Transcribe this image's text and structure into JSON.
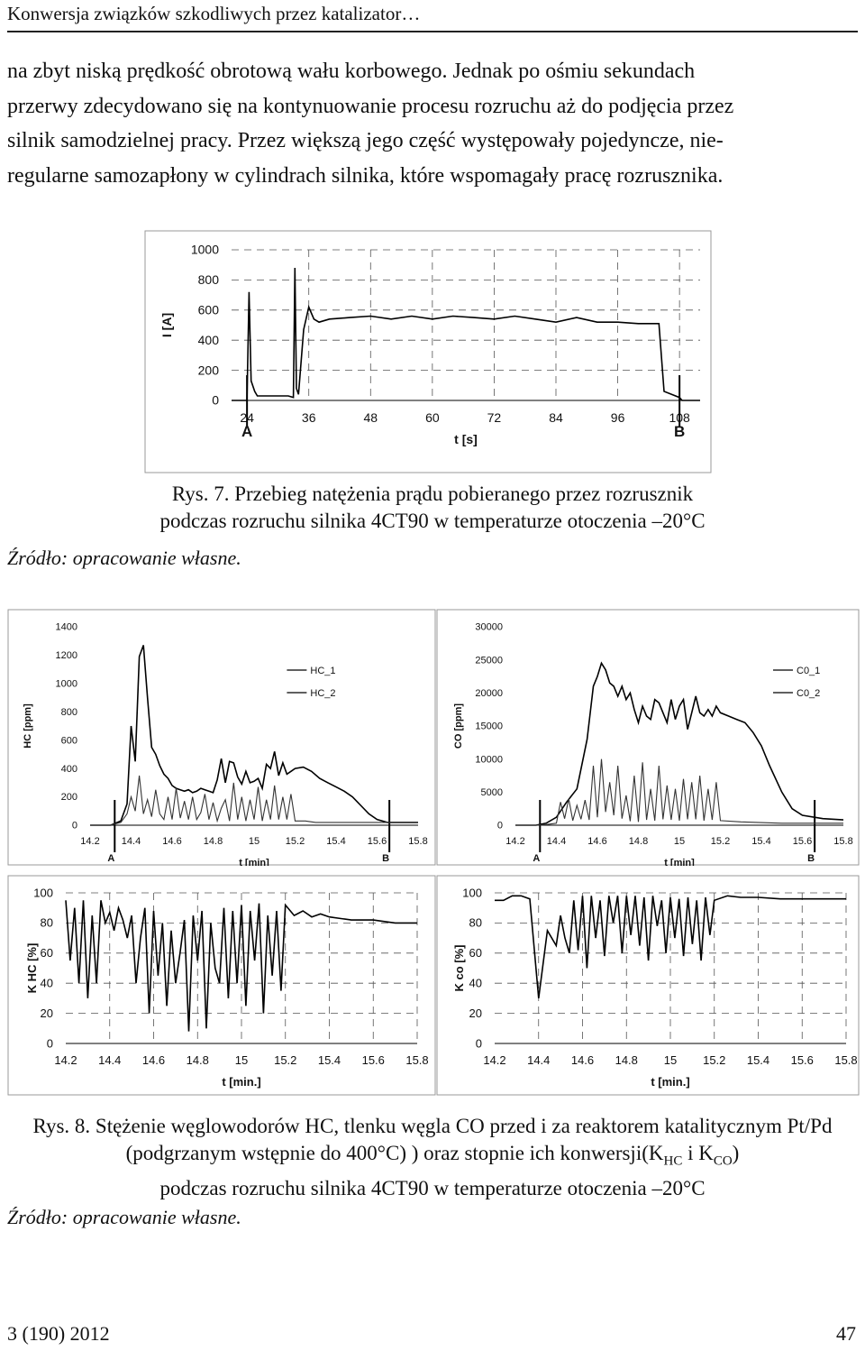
{
  "header": {
    "running_title": "Konwersja związków szkodliwych przez katalizator…"
  },
  "paragraph": {
    "lines": [
      "na zbyt niską prędkość obrotową wału korbowego. Jednak po ośmiu sekundach",
      "przerwy zdecydowano się na kontynuowanie procesu rozruchu aż do podjęcia przez",
      "silnik samodzielnej pracy. Przez większą jego część występowały pojedyncze, nie-",
      "regularne samozapłony w cylindrach silnika, które wspomagały pracę rozrusznika."
    ]
  },
  "figure7": {
    "caption_line1": "Rys. 7. Przebieg natężenia prądu pobieranego przez rozrusznik",
    "caption_line2": "podczas rozruchu silnika 4CT90 w temperaturze otoczenia –20°C",
    "source": "Źródło: opracowanie własne."
  },
  "figure8": {
    "caption_line1": "Rys. 8. Stężenie węglowodorów HC, tlenku węgla CO przed i za reaktorem katalitycznym Pt/Pd",
    "caption_line2_a": "(podgrzanym wstępnie do 400°C) ) oraz stopnie ich konwersji(K",
    "caption_line2_sub1": "HC",
    "caption_line2_b": " i K",
    "caption_line2_sub2": "CO",
    "caption_line2_c": ")",
    "caption_line3": "podczas rozruchu silnika 4CT90 w temperaturze otoczenia –20°C",
    "source": "Źródło: opracowanie własne."
  },
  "footer": {
    "issue": "3 (190) 2012",
    "page": "47"
  },
  "chart_data": [
    {
      "id": "current",
      "type": "line",
      "xlabel": "t [s]",
      "ylabel": "I [A]",
      "xlim": [
        21,
        112
      ],
      "ylim": [
        0,
        1000
      ],
      "xticks": [
        "24",
        "36",
        "48",
        "60",
        "72",
        "84",
        "96",
        "108"
      ],
      "yticks": [
        "0",
        "200",
        "400",
        "600",
        "800",
        "1000"
      ],
      "markers": [
        {
          "label": "A",
          "x": 24
        },
        {
          "label": "B",
          "x": 108
        }
      ],
      "grid": true,
      "series": [
        {
          "x": [
            21,
            24,
            24.4,
            24.8,
            25.5,
            26,
            32,
            33,
            33.3,
            33.6,
            34,
            35,
            36,
            37,
            38,
            40,
            44,
            48,
            52,
            56,
            60,
            64,
            68,
            72,
            76,
            80,
            84,
            88,
            92,
            96,
            100,
            104,
            105,
            108,
            108.5,
            112
          ],
          "y": [
            0,
            0,
            720,
            130,
            60,
            30,
            30,
            20,
            880,
            80,
            40,
            470,
            620,
            540,
            520,
            540,
            550,
            560,
            540,
            560,
            540,
            560,
            550,
            540,
            560,
            540,
            520,
            550,
            520,
            520,
            510,
            510,
            60,
            20,
            0,
            0
          ]
        }
      ]
    },
    {
      "id": "hc",
      "type": "line",
      "xlabel": "t [min]",
      "ylabel": "HC [ppm]",
      "xlim": [
        14.2,
        15.8
      ],
      "ylim": [
        0,
        1400
      ],
      "xticks": [
        "14.2",
        "14.4",
        "14.6",
        "14.8",
        "15",
        "15.2",
        "15.4",
        "15.6",
        "15.8"
      ],
      "yticks": [
        "0",
        "200",
        "400",
        "600",
        "800",
        "1000",
        "1200",
        "1400"
      ],
      "markers": [
        {
          "label": "A",
          "x": 14.32
        },
        {
          "label": "B",
          "x": 15.66
        }
      ],
      "grid": false,
      "legend": {
        "position": "top-center",
        "entries": [
          "HC_1",
          "HC_2"
        ]
      },
      "series": [
        {
          "name": "HC_1",
          "x": [
            14.2,
            14.3,
            14.35,
            14.38,
            14.4,
            14.42,
            14.44,
            14.46,
            14.48,
            14.5,
            14.52,
            14.54,
            14.56,
            14.58,
            14.6,
            14.62,
            14.64,
            14.66,
            14.68,
            14.7,
            14.72,
            14.74,
            14.76,
            14.78,
            14.8,
            14.82,
            14.84,
            14.86,
            14.88,
            14.9,
            14.92,
            14.94,
            14.96,
            14.98,
            15.0,
            15.02,
            15.04,
            15.06,
            15.08,
            15.1,
            15.12,
            15.14,
            15.16,
            15.18,
            15.2,
            15.24,
            15.28,
            15.32,
            15.36,
            15.4,
            15.44,
            15.48,
            15.52,
            15.56,
            15.6,
            15.65,
            15.7,
            15.8
          ],
          "y": [
            0,
            0,
            30,
            150,
            700,
            450,
            1190,
            1270,
            900,
            550,
            500,
            420,
            360,
            330,
            280,
            260,
            250,
            240,
            250,
            230,
            240,
            260,
            250,
            240,
            230,
            320,
            470,
            300,
            450,
            440,
            340,
            290,
            380,
            300,
            310,
            330,
            260,
            430,
            400,
            520,
            350,
            440,
            360,
            380,
            400,
            410,
            380,
            330,
            300,
            270,
            240,
            200,
            140,
            80,
            40,
            20,
            20,
            20
          ]
        },
        {
          "name": "HC_2",
          "x": [
            14.2,
            14.3,
            14.35,
            14.38,
            14.4,
            14.42,
            14.44,
            14.46,
            14.48,
            14.5,
            14.52,
            14.54,
            14.56,
            14.58,
            14.6,
            14.62,
            14.64,
            14.66,
            14.68,
            14.7,
            14.72,
            14.74,
            14.76,
            14.78,
            14.8,
            14.82,
            14.84,
            14.86,
            14.88,
            14.9,
            14.92,
            14.94,
            14.96,
            14.98,
            15.0,
            15.02,
            15.04,
            15.06,
            15.08,
            15.1,
            15.12,
            15.14,
            15.16,
            15.18,
            15.2,
            15.25,
            15.3,
            15.4,
            15.5,
            15.6,
            15.7,
            15.8
          ],
          "y": [
            0,
            0,
            20,
            80,
            200,
            100,
            350,
            80,
            180,
            60,
            250,
            80,
            40,
            200,
            40,
            260,
            50,
            170,
            40,
            200,
            40,
            90,
            220,
            40,
            160,
            30,
            120,
            180,
            30,
            300,
            40,
            200,
            30,
            180,
            40,
            270,
            30,
            180,
            40,
            280,
            40,
            200,
            40,
            220,
            30,
            30,
            20,
            20,
            20,
            20,
            20,
            20
          ]
        }
      ]
    },
    {
      "id": "co",
      "type": "line",
      "xlabel": "t [min]",
      "ylabel": "CO [ppm]",
      "xlim": [
        14.2,
        15.8
      ],
      "ylim": [
        0,
        30000
      ],
      "xticks": [
        "14.2",
        "14.4",
        "14.6",
        "14.8",
        "15",
        "15.2",
        "15.4",
        "15.6",
        "15.8"
      ],
      "yticks": [
        "0",
        "5000",
        "10000",
        "15000",
        "20000",
        "25000",
        "30000"
      ],
      "markers": [
        {
          "label": "A",
          "x": 14.32
        },
        {
          "label": "B",
          "x": 15.66
        }
      ],
      "grid": false,
      "legend": {
        "position": "top-right",
        "entries": [
          "C0_1",
          "C0_2"
        ]
      },
      "series": [
        {
          "name": "C0_1",
          "x": [
            14.2,
            14.3,
            14.35,
            14.4,
            14.45,
            14.5,
            14.55,
            14.58,
            14.6,
            14.62,
            14.64,
            14.66,
            14.68,
            14.7,
            14.72,
            14.74,
            14.76,
            14.78,
            14.8,
            14.82,
            14.84,
            14.86,
            14.88,
            14.9,
            14.92,
            14.94,
            14.96,
            14.98,
            15.0,
            15.02,
            15.04,
            15.06,
            15.08,
            15.1,
            15.12,
            15.14,
            15.16,
            15.18,
            15.2,
            15.24,
            15.28,
            15.32,
            15.36,
            15.4,
            15.44,
            15.5,
            15.55,
            15.6,
            15.7,
            15.8
          ],
          "y": [
            0,
            0,
            300,
            1200,
            3500,
            5500,
            13000,
            21000,
            22500,
            24500,
            23500,
            21500,
            21000,
            19500,
            21000,
            19000,
            20000,
            17500,
            15500,
            18000,
            16500,
            16000,
            19000,
            18500,
            17000,
            15500,
            19000,
            16000,
            18000,
            19000,
            14500,
            17000,
            19500,
            17000,
            16500,
            17500,
            16500,
            18000,
            17000,
            16500,
            16000,
            15500,
            14000,
            12000,
            9000,
            5000,
            2500,
            1500,
            1000,
            800
          ]
        },
        {
          "name": "C0_2",
          "x": [
            14.2,
            14.3,
            14.35,
            14.4,
            14.42,
            14.44,
            14.46,
            14.48,
            14.5,
            14.52,
            14.54,
            14.56,
            14.58,
            14.6,
            14.62,
            14.64,
            14.66,
            14.68,
            14.7,
            14.72,
            14.74,
            14.76,
            14.78,
            14.8,
            14.82,
            14.84,
            14.86,
            14.88,
            14.9,
            14.92,
            14.94,
            14.96,
            14.98,
            15.0,
            15.02,
            15.04,
            15.06,
            15.08,
            15.1,
            15.12,
            15.14,
            15.16,
            15.18,
            15.2,
            15.3,
            15.4,
            15.5,
            15.6,
            15.7,
            15.8
          ],
          "y": [
            0,
            0,
            100,
            300,
            3500,
            1000,
            4000,
            700,
            3000,
            900,
            3800,
            800,
            9000,
            1200,
            10000,
            2000,
            6500,
            1500,
            9000,
            1000,
            4500,
            600,
            7500,
            500,
            9500,
            800,
            5500,
            700,
            9000,
            900,
            6000,
            800,
            5500,
            700,
            7000,
            900,
            6500,
            900,
            7500,
            700,
            5500,
            800,
            6500,
            700,
            500,
            400,
            300,
            300,
            300,
            300
          ]
        }
      ]
    },
    {
      "id": "khc",
      "type": "line",
      "xlabel": "t [min.]",
      "ylabel": "K HC [%]",
      "xlim": [
        14.2,
        15.8
      ],
      "ylim": [
        0,
        100
      ],
      "xticks": [
        "14.2",
        "14.4",
        "14.6",
        "14.8",
        "15",
        "15.2",
        "15.4",
        "15.6",
        "15.8"
      ],
      "yticks": [
        "0",
        "20",
        "40",
        "60",
        "80",
        "100"
      ],
      "grid": true,
      "series": [
        {
          "x": [
            14.2,
            14.22,
            14.24,
            14.26,
            14.28,
            14.3,
            14.32,
            14.34,
            14.36,
            14.38,
            14.4,
            14.42,
            14.44,
            14.46,
            14.48,
            14.5,
            14.52,
            14.54,
            14.56,
            14.58,
            14.6,
            14.62,
            14.64,
            14.66,
            14.68,
            14.7,
            14.72,
            14.74,
            14.76,
            14.78,
            14.8,
            14.82,
            14.84,
            14.86,
            14.88,
            14.9,
            14.92,
            14.94,
            14.96,
            14.98,
            15.0,
            15.02,
            15.04,
            15.06,
            15.08,
            15.1,
            15.12,
            15.14,
            15.16,
            15.18,
            15.2,
            15.24,
            15.28,
            15.32,
            15.36,
            15.4,
            15.5,
            15.6,
            15.7,
            15.8
          ],
          "y": [
            95,
            55,
            90,
            40,
            95,
            30,
            85,
            40,
            95,
            80,
            87,
            75,
            90,
            82,
            70,
            85,
            40,
            70,
            90,
            20,
            88,
            45,
            80,
            25,
            75,
            40,
            60,
            82,
            8,
            85,
            55,
            88,
            10,
            80,
            50,
            40,
            90,
            30,
            88,
            40,
            92,
            25,
            88,
            55,
            93,
            20,
            85,
            45,
            88,
            35,
            92,
            85,
            88,
            84,
            86,
            84,
            82,
            82,
            80,
            80
          ]
        }
      ]
    },
    {
      "id": "kco",
      "type": "line",
      "xlabel": "t [min.]",
      "ylabel": "K co [%]",
      "xlim": [
        14.2,
        15.8
      ],
      "ylim": [
        0,
        100
      ],
      "xticks": [
        "14.2",
        "14.4",
        "14.6",
        "14.8",
        "15",
        "15.2",
        "15.4",
        "15.6",
        "15.8"
      ],
      "yticks": [
        "0",
        "20",
        "40",
        "60",
        "80",
        "100"
      ],
      "grid": true,
      "series": [
        {
          "x": [
            14.2,
            14.24,
            14.28,
            14.32,
            14.36,
            14.4,
            14.44,
            14.48,
            14.5,
            14.52,
            14.54,
            14.56,
            14.58,
            14.6,
            14.62,
            14.64,
            14.66,
            14.68,
            14.7,
            14.72,
            14.74,
            14.76,
            14.78,
            14.8,
            14.82,
            14.84,
            14.86,
            14.88,
            14.9,
            14.92,
            14.94,
            14.96,
            14.98,
            15.0,
            15.02,
            15.04,
            15.06,
            15.08,
            15.1,
            15.12,
            15.14,
            15.16,
            15.18,
            15.2,
            15.26,
            15.32,
            15.4,
            15.5,
            15.6,
            15.7,
            15.8
          ],
          "y": [
            95,
            95,
            98,
            98,
            96,
            30,
            75,
            65,
            85,
            70,
            60,
            95,
            62,
            98,
            50,
            98,
            70,
            95,
            58,
            98,
            80,
            98,
            60,
            98,
            72,
            98,
            65,
            97,
            55,
            98,
            78,
            95,
            60,
            97,
            70,
            96,
            58,
            97,
            66,
            95,
            55,
            97,
            72,
            95,
            98,
            97,
            97,
            96,
            96,
            96,
            96
          ]
        }
      ]
    }
  ]
}
